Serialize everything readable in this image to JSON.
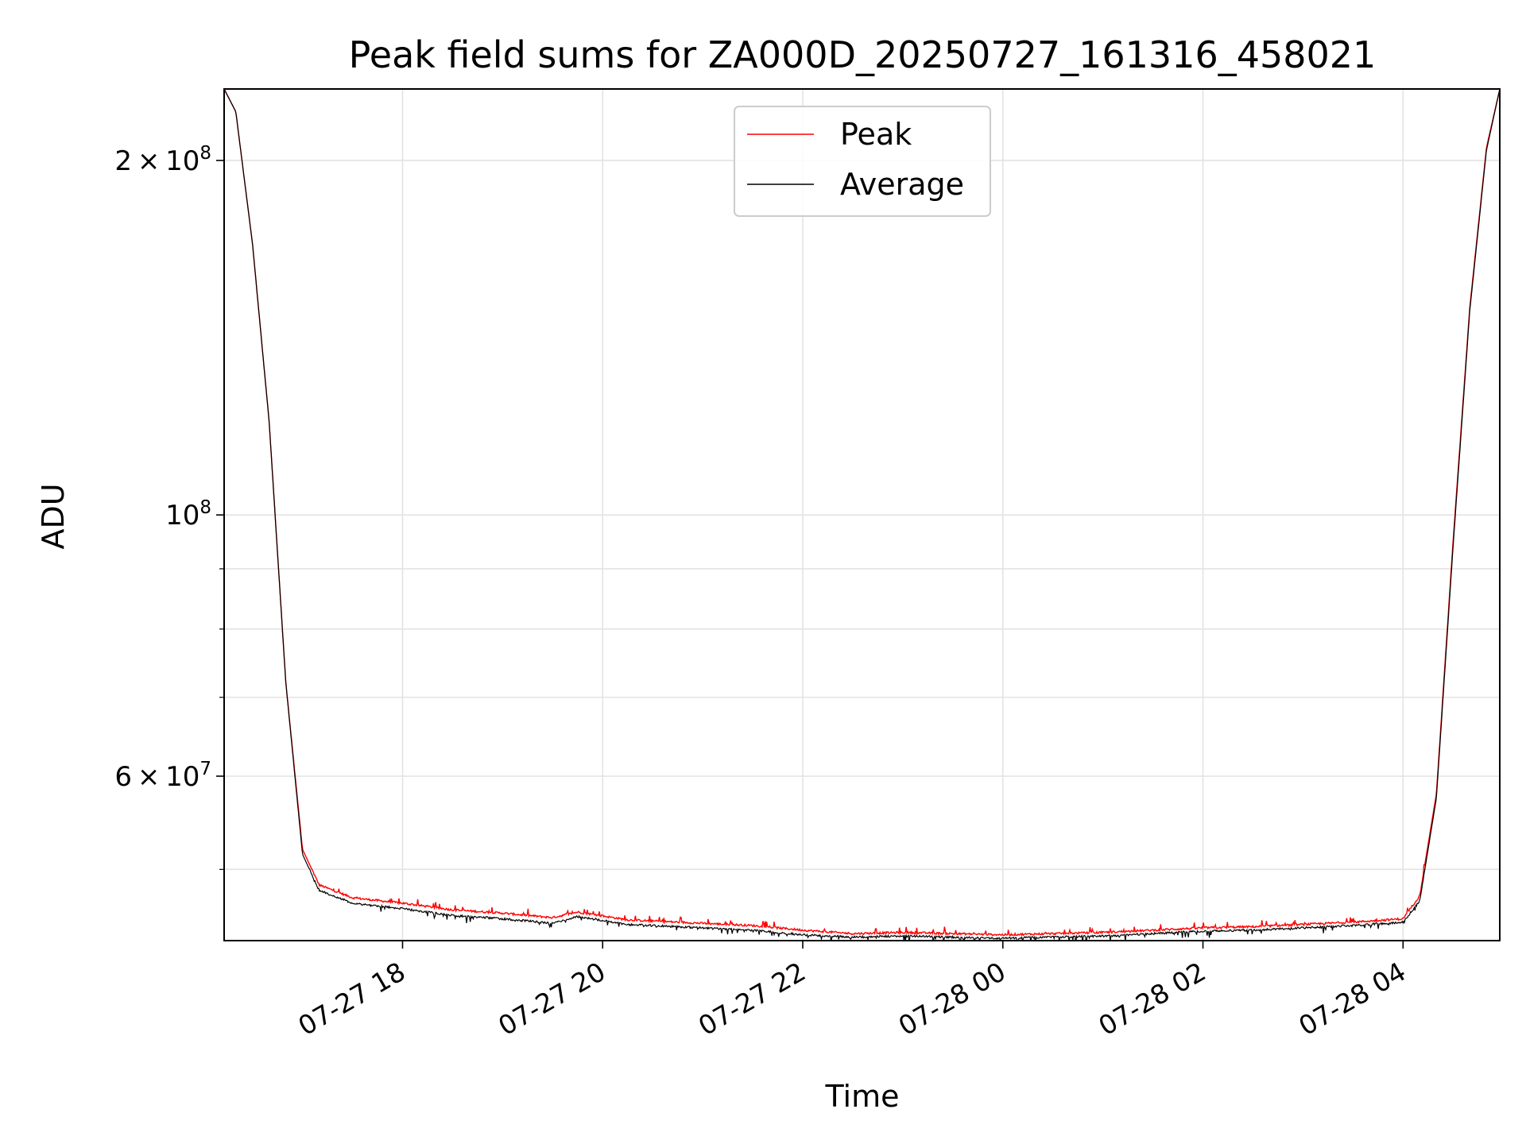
{
  "chart_data": {
    "type": "line",
    "title": "Peak field sums for ZA000D_20250727_161316_458021",
    "xlabel": "Time",
    "ylabel": "ADU",
    "y_scale": "log",
    "grid": true,
    "legend_position": "top-center",
    "xlim": [
      "2025-07-27 16:13",
      "2025-07-28 04:58"
    ],
    "ylim": [
      43500000,
      230000000
    ],
    "x_ticks": [
      {
        "value": "2025-07-27 18:00",
        "label": "07-27 18"
      },
      {
        "value": "2025-07-27 20:00",
        "label": "07-27 20"
      },
      {
        "value": "2025-07-27 22:00",
        "label": "07-27 22"
      },
      {
        "value": "2025-07-28 00:00",
        "label": "07-28 00"
      },
      {
        "value": "2025-07-28 02:00",
        "label": "07-28 02"
      },
      {
        "value": "2025-07-28 04:00",
        "label": "07-28 04"
      }
    ],
    "y_major_ticks": [
      {
        "value": 60000000,
        "label_base": "6 × 10",
        "label_exp": "7"
      },
      {
        "value": 100000000,
        "label_base": "10",
        "label_exp": "8"
      },
      {
        "value": 200000000,
        "label_base": "2 × 10",
        "label_exp": "8"
      }
    ],
    "y_minor_ticks": [
      50000000,
      70000000,
      80000000,
      90000000
    ],
    "series": [
      {
        "name": "Peak",
        "color": "#ff0000",
        "x": [
          "2025-07-27 16:13",
          "2025-07-27 16:20",
          "2025-07-27 16:30",
          "2025-07-27 16:40",
          "2025-07-27 16:50",
          "2025-07-27 17:00",
          "2025-07-27 17:10",
          "2025-07-27 17:30",
          "2025-07-27 18:00",
          "2025-07-27 18:30",
          "2025-07-27 19:00",
          "2025-07-27 19:30",
          "2025-07-27 19:45",
          "2025-07-27 20:15",
          "2025-07-27 21:00",
          "2025-07-27 21:30",
          "2025-07-27 22:00",
          "2025-07-27 22:30",
          "2025-07-27 23:00",
          "2025-07-27 23:30",
          "2025-07-28 00:00",
          "2025-07-28 00:30",
          "2025-07-28 01:00",
          "2025-07-28 01:30",
          "2025-07-28 02:00",
          "2025-07-28 02:30",
          "2025-07-28 03:00",
          "2025-07-28 03:30",
          "2025-07-28 04:00",
          "2025-07-28 04:10",
          "2025-07-28 04:20",
          "2025-07-28 04:30",
          "2025-07-28 04:40",
          "2025-07-28 04:50",
          "2025-07-28 04:58"
        ],
        "y": [
          230000000,
          220000000,
          170000000,
          120000000,
          72000000,
          52000000,
          48500000,
          47300000,
          46800000,
          46200000,
          45900000,
          45500000,
          46000000,
          45300000,
          45000000,
          44800000,
          44400000,
          44100000,
          44200000,
          44100000,
          44000000,
          44100000,
          44200000,
          44400000,
          44600000,
          44700000,
          44900000,
          45100000,
          45400000,
          47500000,
          58000000,
          95000000,
          150000000,
          205000000,
          230000000
        ]
      },
      {
        "name": "Average",
        "color": "#000000",
        "x": [
          "2025-07-27 16:13",
          "2025-07-27 16:20",
          "2025-07-27 16:30",
          "2025-07-27 16:40",
          "2025-07-27 16:50",
          "2025-07-27 17:00",
          "2025-07-27 17:10",
          "2025-07-27 17:30",
          "2025-07-27 18:00",
          "2025-07-27 18:30",
          "2025-07-27 19:00",
          "2025-07-27 19:30",
          "2025-07-27 19:45",
          "2025-07-27 20:15",
          "2025-07-27 21:00",
          "2025-07-27 21:30",
          "2025-07-27 22:00",
          "2025-07-27 22:30",
          "2025-07-27 23:00",
          "2025-07-27 23:30",
          "2025-07-28 00:00",
          "2025-07-28 00:30",
          "2025-07-28 01:00",
          "2025-07-28 01:30",
          "2025-07-28 02:00",
          "2025-07-28 02:30",
          "2025-07-28 03:00",
          "2025-07-28 03:30",
          "2025-07-28 04:00",
          "2025-07-28 04:10",
          "2025-07-28 04:20",
          "2025-07-28 04:30",
          "2025-07-28 04:40",
          "2025-07-28 04:50",
          "2025-07-28 04:58"
        ],
        "y": [
          230000000,
          220000000,
          170000000,
          120000000,
          72000000,
          51500000,
          48000000,
          46800000,
          46300000,
          45700000,
          45400000,
          45000000,
          45600000,
          44900000,
          44600000,
          44400000,
          44000000,
          43800000,
          43900000,
          43800000,
          43700000,
          43800000,
          43900000,
          44100000,
          44300000,
          44400000,
          44600000,
          44800000,
          45100000,
          47000000,
          57500000,
          94000000,
          149000000,
          204000000,
          230000000
        ]
      }
    ]
  }
}
